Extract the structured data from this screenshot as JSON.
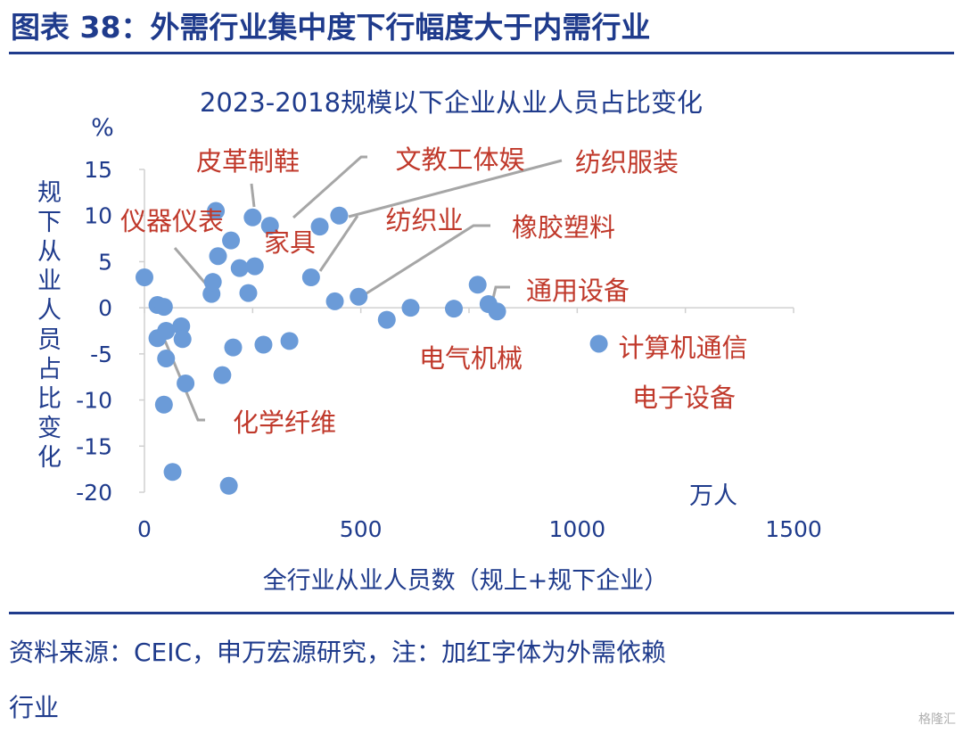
{
  "figure": {
    "header": "图表 38：外需行业集中度下行幅度大于内需行业",
    "source_line1": "资料来源：CEIC，申万宏源研究，注：加红字体为外需依赖",
    "source_line2": "行业",
    "watermark": "格隆汇"
  },
  "chart_data": {
    "type": "scatter",
    "title": "2023-2018规模以下企业从业人员占比变化",
    "xlabel": "全行业从业人员数（规上+规下企业）",
    "x_unit": "万人",
    "ylabel": "规下从业人员占比变化",
    "y_unit": "%",
    "xlim": [
      0,
      1500
    ],
    "ylim": [
      -20,
      15
    ],
    "xticks": [
      "0",
      "500",
      "1000",
      "1500"
    ],
    "yticks": [
      "15",
      "10",
      "5",
      "0",
      "-5",
      "-10",
      "-15",
      "-20"
    ],
    "colors": {
      "point": "#6b9bd8",
      "axis_text": "#1f3b8c",
      "label_red": "#c0392b",
      "leader": "#a6a6a6"
    },
    "points": [
      {
        "x": 0,
        "y": 3.3
      },
      {
        "x": 30,
        "y": 0.3
      },
      {
        "x": 45,
        "y": 0.1
      },
      {
        "x": 30,
        "y": -3.3
      },
      {
        "x": 50,
        "y": -2.5
      },
      {
        "x": 50,
        "y": -5.5
      },
      {
        "x": 45,
        "y": -10.5
      },
      {
        "x": 65,
        "y": -17.8
      },
      {
        "x": 85,
        "y": -2.0
      },
      {
        "x": 88,
        "y": -3.4
      },
      {
        "x": 95,
        "y": -8.2
      },
      {
        "x": 155,
        "y": 1.5
      },
      {
        "x": 158,
        "y": 2.8
      },
      {
        "x": 165,
        "y": 10.5
      },
      {
        "x": 170,
        "y": 5.6
      },
      {
        "x": 180,
        "y": -7.3
      },
      {
        "x": 195,
        "y": -19.3
      },
      {
        "x": 200,
        "y": 7.3
      },
      {
        "x": 205,
        "y": -4.3
      },
      {
        "x": 220,
        "y": 4.3
      },
      {
        "x": 240,
        "y": 1.6
      },
      {
        "x": 250,
        "y": 9.8
      },
      {
        "x": 255,
        "y": 4.5
      },
      {
        "x": 275,
        "y": -4.0
      },
      {
        "x": 290,
        "y": 8.9
      },
      {
        "x": 335,
        "y": -3.6
      },
      {
        "x": 385,
        "y": 3.3
      },
      {
        "x": 405,
        "y": 8.8
      },
      {
        "x": 440,
        "y": 0.7
      },
      {
        "x": 450,
        "y": 10.0
      },
      {
        "x": 495,
        "y": 1.2
      },
      {
        "x": 560,
        "y": -1.3
      },
      {
        "x": 615,
        "y": 0.0
      },
      {
        "x": 715,
        "y": -0.1
      },
      {
        "x": 770,
        "y": 2.5
      },
      {
        "x": 795,
        "y": 0.4
      },
      {
        "x": 815,
        "y": -0.4
      },
      {
        "x": 1050,
        "y": -3.9
      }
    ],
    "annotations": [
      {
        "text": "皮革制鞋"
      },
      {
        "text": "文教工体娱"
      },
      {
        "text": "纺织服装"
      },
      {
        "text": "仪器仪表"
      },
      {
        "text": "家具"
      },
      {
        "text": "纺织业"
      },
      {
        "text": "橡胶塑料"
      },
      {
        "text": "通用设备"
      },
      {
        "text": "电气机械"
      },
      {
        "text": "计算机通信"
      },
      {
        "text": "电子设备"
      },
      {
        "text": "化学纤维"
      }
    ]
  }
}
